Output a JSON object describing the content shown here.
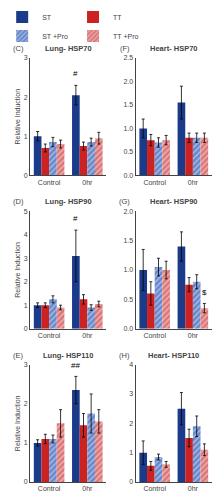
{
  "chart_data": [
    {
      "type": "bar",
      "title": "Lung- HSP70",
      "ylabel": "Relative Induction",
      "categories": [
        "Control",
        "0hr"
      ],
      "series": [
        {
          "name": "ST",
          "color": "#1a3a8a",
          "values": [
            1.0,
            2.05
          ],
          "errors": [
            0.12,
            0.25
          ]
        },
        {
          "name": "TT",
          "color": "#cc2222",
          "values": [
            0.7,
            0.75
          ],
          "errors": [
            0.1,
            0.1
          ]
        },
        {
          "name": "ST +Pro",
          "color": "#6688cc",
          "marker": "hatch",
          "values": [
            0.85,
            0.85
          ],
          "errors": [
            0.12,
            0.1
          ]
        },
        {
          "name": "TT +Pro",
          "color": "#dd7777",
          "marker": "hatch",
          "values": [
            0.8,
            0.95
          ],
          "errors": [
            0.1,
            0.15
          ]
        }
      ],
      "ylim": [
        0,
        3
      ],
      "yticks": [
        0,
        1,
        2,
        3
      ],
      "grid": false,
      "legend": "top",
      "annotations": [
        {
          "text": "(C)"
        },
        {
          "text": "#",
          "series": "ST",
          "category": "0hr",
          "y": 2.45
        }
      ]
    },
    {
      "type": "bar",
      "title": "Heart- HSP70",
      "categories": [
        "Control",
        "0hr"
      ],
      "series": [
        {
          "name": "ST",
          "color": "#1a3a8a",
          "values": [
            1.0,
            1.55
          ],
          "errors": [
            0.2,
            0.35
          ]
        },
        {
          "name": "TT",
          "color": "#cc2222",
          "values": [
            0.75,
            0.8
          ],
          "errors": [
            0.12,
            0.1
          ]
        },
        {
          "name": "ST +Pro",
          "color": "#6688cc",
          "marker": "hatch",
          "values": [
            0.7,
            0.8
          ],
          "errors": [
            0.1,
            0.1
          ]
        },
        {
          "name": "TT +Pro",
          "color": "#dd7777",
          "marker": "hatch",
          "values": [
            0.75,
            0.8
          ],
          "errors": [
            0.1,
            0.1
          ]
        }
      ],
      "ylim": [
        0,
        2.5
      ],
      "yticks": [
        {
          "value": 0,
          "label": "0.0"
        },
        0.5,
        {
          "value": 1,
          "label": "1.0"
        },
        1.5,
        {
          "value": 2,
          "label": "2.0"
        },
        2.5
      ],
      "grid": false,
      "annotations": [
        {
          "text": "(F)"
        }
      ]
    },
    {
      "type": "bar",
      "title": "Lung- HSP90",
      "ylabel": "Relative Induction",
      "categories": [
        "Control",
        "0hr"
      ],
      "series": [
        {
          "name": "ST",
          "color": "#1a3a8a",
          "values": [
            1.0,
            3.1
          ],
          "errors": [
            0.1,
            1.1
          ]
        },
        {
          "name": "TT",
          "color": "#cc2222",
          "values": [
            1.0,
            1.25
          ],
          "errors": [
            0.1,
            0.2
          ]
        },
        {
          "name": "ST +Pro",
          "color": "#6688cc",
          "marker": "hatch",
          "values": [
            1.25,
            0.9
          ],
          "errors": [
            0.15,
            0.12
          ]
        },
        {
          "name": "TT +Pro",
          "color": "#dd7777",
          "marker": "hatch",
          "values": [
            0.9,
            1.05
          ],
          "errors": [
            0.1,
            0.12
          ]
        }
      ],
      "ylim": [
        0,
        5
      ],
      "yticks": [
        0,
        1,
        2,
        3,
        4,
        5
      ],
      "grid": false,
      "annotations": [
        {
          "text": "(D)"
        },
        {
          "text": "#",
          "series": "ST",
          "category": "0hr",
          "y": 4.4
        }
      ]
    },
    {
      "type": "bar",
      "title": "Heart- HSP90",
      "categories": [
        "Control",
        "0hr"
      ],
      "series": [
        {
          "name": "ST",
          "color": "#1a3a8a",
          "values": [
            1.0,
            1.4
          ],
          "errors": [
            0.35,
            0.25
          ]
        },
        {
          "name": "TT",
          "color": "#cc2222",
          "values": [
            0.6,
            0.75
          ],
          "errors": [
            0.2,
            0.12
          ]
        },
        {
          "name": "ST +Pro",
          "color": "#6688cc",
          "marker": "hatch",
          "values": [
            1.05,
            0.8
          ],
          "errors": [
            0.15,
            0.12
          ]
        },
        {
          "name": "TT +Pro",
          "color": "#dd7777",
          "marker": "hatch",
          "values": [
            1.0,
            0.35
          ],
          "errors": [
            0.15,
            0.08
          ]
        }
      ],
      "ylim": [
        0,
        2.0
      ],
      "yticks": [
        {
          "value": 0,
          "label": "0.0"
        },
        0.5,
        {
          "value": 1,
          "label": "1.0"
        },
        1.5,
        {
          "value": 2,
          "label": "2.0"
        }
      ],
      "grid": false,
      "annotations": [
        {
          "text": "(G)"
        },
        {
          "text": "$",
          "series": "TT +Pro",
          "category": "0hr",
          "y": 0.5
        }
      ]
    },
    {
      "type": "bar",
      "title": "Lung- HSP110",
      "ylabel": "Relative Induction",
      "categories": [
        "Control",
        "0hr"
      ],
      "series": [
        {
          "name": "ST",
          "color": "#1a3a8a",
          "values": [
            1.0,
            2.35
          ],
          "errors": [
            0.08,
            0.35
          ]
        },
        {
          "name": "TT",
          "color": "#cc2222",
          "values": [
            1.1,
            1.45
          ],
          "errors": [
            0.12,
            0.3
          ]
        },
        {
          "name": "ST +Pro",
          "color": "#6688cc",
          "marker": "hatch",
          "values": [
            1.1,
            1.75
          ],
          "errors": [
            0.1,
            0.5
          ]
        },
        {
          "name": "TT +Pro",
          "color": "#dd7777",
          "marker": "hatch",
          "values": [
            1.5,
            1.55
          ],
          "errors": [
            0.35,
            0.3
          ]
        }
      ],
      "ylim": [
        0,
        3
      ],
      "yticks": [
        0,
        1,
        2,
        3
      ],
      "grid": false,
      "annotations": [
        {
          "text": "(E)"
        },
        {
          "text": "##",
          "series": "ST",
          "category": "0hr",
          "y": 2.82
        }
      ]
    },
    {
      "type": "bar",
      "title": "Heart- HSP110",
      "categories": [
        "Control",
        "0hr"
      ],
      "series": [
        {
          "name": "ST",
          "color": "#1a3a8a",
          "values": [
            1.0,
            2.5
          ],
          "errors": [
            0.4,
            0.55
          ]
        },
        {
          "name": "TT",
          "color": "#cc2222",
          "values": [
            0.55,
            1.5
          ],
          "errors": [
            0.15,
            0.3
          ]
        },
        {
          "name": "ST +Pro",
          "color": "#6688cc",
          "marker": "hatch",
          "values": [
            0.85,
            1.9
          ],
          "errors": [
            0.1,
            0.35
          ]
        },
        {
          "name": "TT +Pro",
          "color": "#dd7777",
          "marker": "hatch",
          "values": [
            0.6,
            1.1
          ],
          "errors": [
            0.1,
            0.2
          ]
        }
      ],
      "ylim": [
        0,
        4
      ],
      "yticks": [
        0,
        1,
        2,
        3,
        4
      ],
      "grid": false,
      "annotations": [
        {
          "text": "(H)"
        }
      ]
    }
  ]
}
